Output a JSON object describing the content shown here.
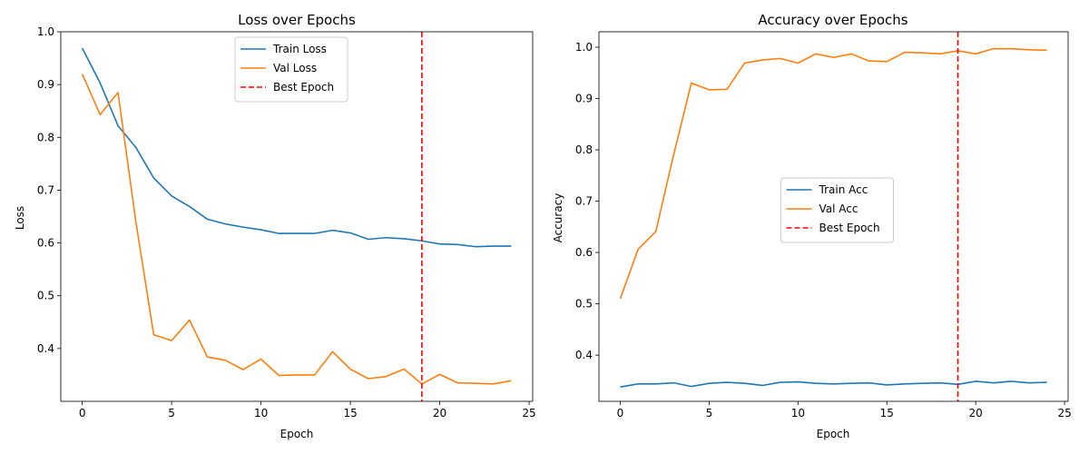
{
  "chart_data": [
    {
      "type": "line",
      "title": "Loss over Epochs",
      "xlabel": "Epoch",
      "ylabel": "Loss",
      "xlim": [
        -1.2,
        25.2
      ],
      "ylim": [
        0.3,
        1.0
      ],
      "xticks": [
        0,
        5,
        10,
        15,
        20,
        25
      ],
      "xtick_labels": [
        "0",
        "5",
        "10",
        "15",
        "20",
        "25"
      ],
      "yticks": [
        0.4,
        0.5,
        0.6,
        0.7,
        0.8,
        0.9,
        1.0
      ],
      "ytick_labels": [
        "0.4",
        "0.5",
        "0.6",
        "0.7",
        "0.8",
        "0.9",
        "1.0"
      ],
      "grid": false,
      "legend_position": "top-center",
      "x": [
        0,
        1,
        2,
        3,
        4,
        5,
        6,
        7,
        8,
        9,
        10,
        11,
        12,
        13,
        14,
        15,
        16,
        17,
        18,
        19,
        20,
        21,
        22,
        23,
        24
      ],
      "series": [
        {
          "name": "Train Loss",
          "color": "#1f77b4",
          "style": "solid",
          "values": [
            0.969,
            0.903,
            0.822,
            0.781,
            0.723,
            0.689,
            0.669,
            0.645,
            0.636,
            0.63,
            0.625,
            0.618,
            0.618,
            0.618,
            0.624,
            0.619,
            0.607,
            0.61,
            0.608,
            0.604,
            0.598,
            0.597,
            0.593,
            0.594,
            0.594
          ]
        },
        {
          "name": "Val Loss",
          "color": "#ff7f0e",
          "style": "solid",
          "values": [
            0.92,
            0.843,
            0.885,
            0.64,
            0.426,
            0.415,
            0.454,
            0.384,
            0.378,
            0.36,
            0.38,
            0.349,
            0.35,
            0.35,
            0.394,
            0.361,
            0.343,
            0.347,
            0.361,
            0.333,
            0.351,
            0.335,
            0.334,
            0.333,
            0.339
          ]
        }
      ],
      "vlines": [
        {
          "name": "Best Epoch",
          "x": 19,
          "color": "#ff0000",
          "style": "dashed"
        }
      ]
    },
    {
      "type": "line",
      "title": "Accuracy over Epochs",
      "xlabel": "Epoch",
      "ylabel": "Accuracy",
      "xlim": [
        -1.2,
        25.2
      ],
      "ylim": [
        0.31,
        1.03
      ],
      "xticks": [
        0,
        5,
        10,
        15,
        20,
        25
      ],
      "xtick_labels": [
        "0",
        "5",
        "10",
        "15",
        "20",
        "25"
      ],
      "yticks": [
        0.4,
        0.5,
        0.6,
        0.7,
        0.8,
        0.9,
        1.0
      ],
      "ytick_labels": [
        "0.4",
        "0.5",
        "0.6",
        "0.7",
        "0.8",
        "0.9",
        "1.0"
      ],
      "grid": false,
      "legend_position": "center",
      "x": [
        0,
        1,
        2,
        3,
        4,
        5,
        6,
        7,
        8,
        9,
        10,
        11,
        12,
        13,
        14,
        15,
        16,
        17,
        18,
        19,
        20,
        21,
        22,
        23,
        24
      ],
      "series": [
        {
          "name": "Train Acc",
          "color": "#1f77b4",
          "style": "solid",
          "values": [
            0.338,
            0.344,
            0.344,
            0.346,
            0.339,
            0.345,
            0.347,
            0.345,
            0.341,
            0.347,
            0.348,
            0.345,
            0.344,
            0.345,
            0.346,
            0.342,
            0.344,
            0.345,
            0.346,
            0.343,
            0.349,
            0.346,
            0.349,
            0.346,
            0.347
          ]
        },
        {
          "name": "Val Acc",
          "color": "#ff7f0e",
          "style": "solid",
          "values": [
            0.51,
            0.606,
            0.641,
            0.79,
            0.93,
            0.917,
            0.918,
            0.969,
            0.975,
            0.978,
            0.969,
            0.987,
            0.98,
            0.987,
            0.973,
            0.972,
            0.99,
            0.989,
            0.987,
            0.993,
            0.987,
            0.997,
            0.997,
            0.995,
            0.994
          ]
        }
      ],
      "vlines": [
        {
          "name": "Best Epoch",
          "x": 19,
          "color": "#ff0000",
          "style": "dashed"
        }
      ]
    }
  ]
}
